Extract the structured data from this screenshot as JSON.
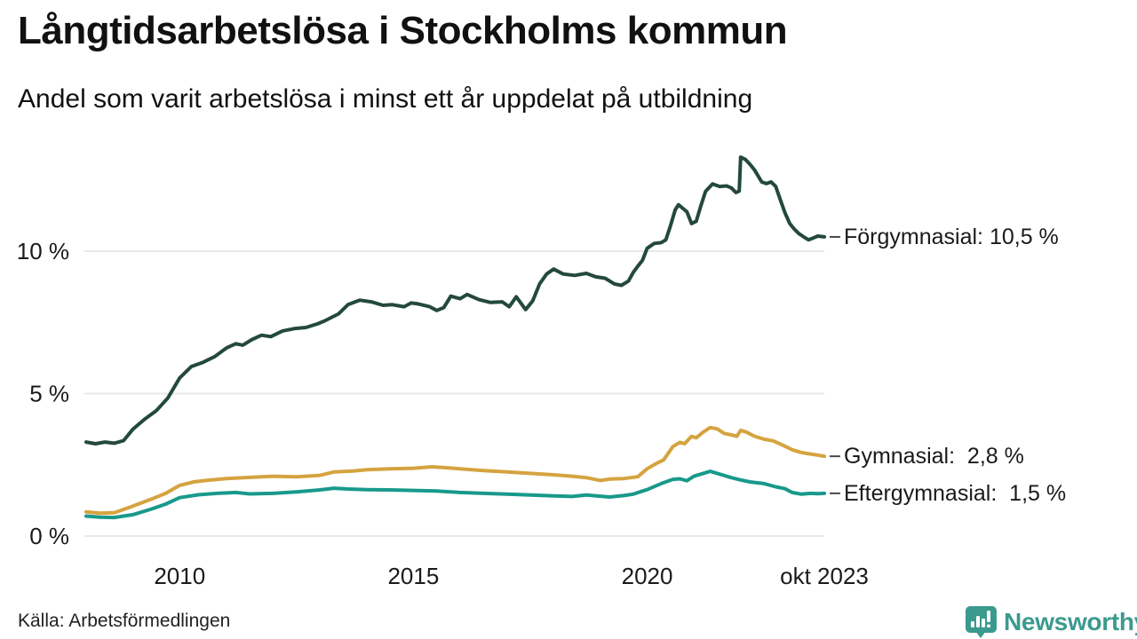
{
  "title": "Långtidsarbetslösa i Stockholms kommun",
  "subtitle": "Andel som varit arbetslösa i minst ett år uppdelat på utbildning",
  "source": "Källa: Arbetsförmedlingen",
  "branding": {
    "name": "Newsworthy",
    "color": "#3B9A8E",
    "icon": "bar-chart-speech-bubble-icon"
  },
  "colors": {
    "gridline": "#E8E8E8",
    "text": "#1A1A1A",
    "connector": "#4A4A4A",
    "forgymnasial": "#23493C",
    "gymnasial": "#D5A33F",
    "eftergymnasial": "#18998B"
  },
  "chart_data": {
    "type": "line",
    "title": "Långtidsarbetslösa i Stockholms kommun",
    "subtitle": "Andel som varit arbetslösa i minst ett år uppdelat på utbildning",
    "unit": "%",
    "grid": true,
    "legend_position": "end-of-line labels, right of plot",
    "x_axis": {
      "range": [
        2008.0,
        2023.79
      ],
      "ticks": [
        {
          "value": 2010,
          "label": "2010"
        },
        {
          "value": 2015,
          "label": "2015"
        },
        {
          "value": 2020,
          "label": "2020"
        },
        {
          "value": 2023.79,
          "label": "okt 2023"
        }
      ]
    },
    "y_axis": {
      "range": [
        0,
        13.6
      ],
      "ticks": [
        {
          "value": 0,
          "label": "0 %"
        },
        {
          "value": 5,
          "label": "5 %"
        },
        {
          "value": 10,
          "label": "10 %"
        }
      ]
    },
    "series": [
      {
        "name": "Förgymnasial",
        "color": "#23493C",
        "end_value": 10.5,
        "end_value_text": "10,5 %",
        "end_label": "Förgymnasial: 10,5 %",
        "points": [
          [
            2008.0,
            3.3
          ],
          [
            2008.2,
            3.24
          ],
          [
            2008.4,
            3.3
          ],
          [
            2008.6,
            3.26
          ],
          [
            2008.8,
            3.35
          ],
          [
            2009.0,
            3.75
          ],
          [
            2009.25,
            4.1
          ],
          [
            2009.5,
            4.4
          ],
          [
            2009.75,
            4.85
          ],
          [
            2010.0,
            5.55
          ],
          [
            2010.25,
            5.95
          ],
          [
            2010.5,
            6.1
          ],
          [
            2010.75,
            6.3
          ],
          [
            2011.0,
            6.6
          ],
          [
            2011.2,
            6.75
          ],
          [
            2011.35,
            6.7
          ],
          [
            2011.55,
            6.9
          ],
          [
            2011.75,
            7.05
          ],
          [
            2011.95,
            7.0
          ],
          [
            2012.2,
            7.2
          ],
          [
            2012.45,
            7.28
          ],
          [
            2012.7,
            7.32
          ],
          [
            2012.95,
            7.45
          ],
          [
            2013.1,
            7.55
          ],
          [
            2013.4,
            7.8
          ],
          [
            2013.6,
            8.12
          ],
          [
            2013.85,
            8.28
          ],
          [
            2014.1,
            8.22
          ],
          [
            2014.35,
            8.1
          ],
          [
            2014.55,
            8.12
          ],
          [
            2014.8,
            8.05
          ],
          [
            2014.95,
            8.18
          ],
          [
            2015.1,
            8.15
          ],
          [
            2015.35,
            8.05
          ],
          [
            2015.5,
            7.92
          ],
          [
            2015.65,
            8.02
          ],
          [
            2015.8,
            8.42
          ],
          [
            2016.0,
            8.33
          ],
          [
            2016.15,
            8.48
          ],
          [
            2016.4,
            8.3
          ],
          [
            2016.65,
            8.2
          ],
          [
            2016.9,
            8.22
          ],
          [
            2017.05,
            8.05
          ],
          [
            2017.2,
            8.4
          ],
          [
            2017.4,
            7.95
          ],
          [
            2017.55,
            8.25
          ],
          [
            2017.7,
            8.85
          ],
          [
            2017.85,
            9.2
          ],
          [
            2018.0,
            9.37
          ],
          [
            2018.2,
            9.2
          ],
          [
            2018.45,
            9.15
          ],
          [
            2018.7,
            9.22
          ],
          [
            2018.9,
            9.1
          ],
          [
            2019.1,
            9.05
          ],
          [
            2019.3,
            8.85
          ],
          [
            2019.45,
            8.8
          ],
          [
            2019.6,
            8.95
          ],
          [
            2019.7,
            9.25
          ],
          [
            2019.8,
            9.47
          ],
          [
            2019.9,
            9.68
          ],
          [
            2020.0,
            10.1
          ],
          [
            2020.15,
            10.27
          ],
          [
            2020.3,
            10.3
          ],
          [
            2020.4,
            10.4
          ],
          [
            2020.5,
            10.9
          ],
          [
            2020.6,
            11.45
          ],
          [
            2020.67,
            11.63
          ],
          [
            2020.78,
            11.48
          ],
          [
            2020.85,
            11.38
          ],
          [
            2020.95,
            10.97
          ],
          [
            2021.05,
            11.05
          ],
          [
            2021.15,
            11.6
          ],
          [
            2021.25,
            12.1
          ],
          [
            2021.4,
            12.36
          ],
          [
            2021.55,
            12.27
          ],
          [
            2021.7,
            12.29
          ],
          [
            2021.8,
            12.22
          ],
          [
            2021.9,
            12.06
          ],
          [
            2021.97,
            12.11
          ],
          [
            2022.0,
            13.3
          ],
          [
            2022.1,
            13.22
          ],
          [
            2022.2,
            13.05
          ],
          [
            2022.3,
            12.84
          ],
          [
            2022.45,
            12.43
          ],
          [
            2022.55,
            12.37
          ],
          [
            2022.65,
            12.43
          ],
          [
            2022.75,
            12.27
          ],
          [
            2022.85,
            11.8
          ],
          [
            2022.95,
            11.34
          ],
          [
            2023.05,
            10.97
          ],
          [
            2023.15,
            10.77
          ],
          [
            2023.25,
            10.61
          ],
          [
            2023.35,
            10.5
          ],
          [
            2023.45,
            10.4
          ],
          [
            2023.55,
            10.46
          ],
          [
            2023.65,
            10.53
          ],
          [
            2023.79,
            10.5
          ]
        ]
      },
      {
        "name": "Gymnasial",
        "color": "#D5A33F",
        "end_value": 2.8,
        "end_value_text": "2,8 %",
        "end_label": "Gymnasial:  2,8 %",
        "points": [
          [
            2008.0,
            0.85
          ],
          [
            2008.3,
            0.8
          ],
          [
            2008.6,
            0.82
          ],
          [
            2009.0,
            1.05
          ],
          [
            2009.4,
            1.3
          ],
          [
            2009.7,
            1.5
          ],
          [
            2010.0,
            1.78
          ],
          [
            2010.3,
            1.9
          ],
          [
            2010.6,
            1.96
          ],
          [
            2011.0,
            2.02
          ],
          [
            2011.5,
            2.06
          ],
          [
            2012.0,
            2.1
          ],
          [
            2012.5,
            2.08
          ],
          [
            2013.0,
            2.13
          ],
          [
            2013.3,
            2.25
          ],
          [
            2013.7,
            2.28
          ],
          [
            2014.0,
            2.33
          ],
          [
            2014.5,
            2.36
          ],
          [
            2015.0,
            2.38
          ],
          [
            2015.4,
            2.43
          ],
          [
            2015.7,
            2.4
          ],
          [
            2016.0,
            2.36
          ],
          [
            2016.5,
            2.3
          ],
          [
            2017.0,
            2.25
          ],
          [
            2017.5,
            2.2
          ],
          [
            2018.0,
            2.15
          ],
          [
            2018.4,
            2.1
          ],
          [
            2018.7,
            2.05
          ],
          [
            2019.0,
            1.95
          ],
          [
            2019.2,
            2.0
          ],
          [
            2019.5,
            2.02
          ],
          [
            2019.8,
            2.08
          ],
          [
            2020.0,
            2.36
          ],
          [
            2020.2,
            2.55
          ],
          [
            2020.35,
            2.67
          ],
          [
            2020.55,
            3.14
          ],
          [
            2020.7,
            3.29
          ],
          [
            2020.8,
            3.24
          ],
          [
            2020.95,
            3.5
          ],
          [
            2021.05,
            3.45
          ],
          [
            2021.2,
            3.65
          ],
          [
            2021.35,
            3.81
          ],
          [
            2021.5,
            3.76
          ],
          [
            2021.65,
            3.6
          ],
          [
            2021.8,
            3.55
          ],
          [
            2021.92,
            3.5
          ],
          [
            2022.0,
            3.71
          ],
          [
            2022.12,
            3.65
          ],
          [
            2022.3,
            3.5
          ],
          [
            2022.5,
            3.4
          ],
          [
            2022.7,
            3.34
          ],
          [
            2022.9,
            3.19
          ],
          [
            2023.1,
            3.03
          ],
          [
            2023.3,
            2.93
          ],
          [
            2023.5,
            2.88
          ],
          [
            2023.65,
            2.84
          ],
          [
            2023.79,
            2.8
          ]
        ]
      },
      {
        "name": "Eftergymnasial",
        "color": "#18998B",
        "end_value": 1.5,
        "end_value_text": "1,5 %",
        "end_label": "Eftergymnasial:  1,5 %",
        "points": [
          [
            2008.0,
            0.7
          ],
          [
            2008.3,
            0.66
          ],
          [
            2008.6,
            0.65
          ],
          [
            2009.0,
            0.75
          ],
          [
            2009.4,
            0.95
          ],
          [
            2009.7,
            1.12
          ],
          [
            2010.0,
            1.35
          ],
          [
            2010.4,
            1.45
          ],
          [
            2010.8,
            1.5
          ],
          [
            2011.2,
            1.53
          ],
          [
            2011.5,
            1.48
          ],
          [
            2012.0,
            1.5
          ],
          [
            2012.5,
            1.55
          ],
          [
            2013.0,
            1.62
          ],
          [
            2013.3,
            1.68
          ],
          [
            2013.6,
            1.65
          ],
          [
            2014.0,
            1.63
          ],
          [
            2014.5,
            1.62
          ],
          [
            2015.0,
            1.6
          ],
          [
            2015.5,
            1.58
          ],
          [
            2016.0,
            1.53
          ],
          [
            2016.5,
            1.5
          ],
          [
            2017.0,
            1.47
          ],
          [
            2017.5,
            1.44
          ],
          [
            2018.0,
            1.41
          ],
          [
            2018.4,
            1.39
          ],
          [
            2018.7,
            1.44
          ],
          [
            2019.0,
            1.4
          ],
          [
            2019.2,
            1.37
          ],
          [
            2019.5,
            1.42
          ],
          [
            2019.7,
            1.47
          ],
          [
            2019.85,
            1.55
          ],
          [
            2020.0,
            1.63
          ],
          [
            2020.3,
            1.84
          ],
          [
            2020.55,
            1.99
          ],
          [
            2020.7,
            2.01
          ],
          [
            2020.85,
            1.94
          ],
          [
            2021.0,
            2.1
          ],
          [
            2021.2,
            2.2
          ],
          [
            2021.35,
            2.27
          ],
          [
            2021.5,
            2.2
          ],
          [
            2021.8,
            2.05
          ],
          [
            2022.0,
            1.97
          ],
          [
            2022.2,
            1.9
          ],
          [
            2022.5,
            1.84
          ],
          [
            2022.75,
            1.73
          ],
          [
            2022.95,
            1.66
          ],
          [
            2023.1,
            1.53
          ],
          [
            2023.3,
            1.47
          ],
          [
            2023.5,
            1.5
          ],
          [
            2023.65,
            1.49
          ],
          [
            2023.79,
            1.5
          ]
        ]
      }
    ]
  }
}
